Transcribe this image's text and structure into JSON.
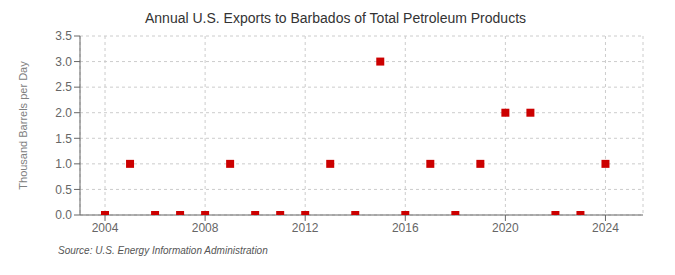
{
  "chart_data": {
    "type": "scatter",
    "title": "Annual U.S. Exports to Barbados of Total Petroleum Products",
    "ylabel": "Thousand Barrels per Day",
    "annotations": [
      "Source: U.S. Energy Information Administration"
    ],
    "x": [
      2004,
      2005,
      2006,
      2007,
      2008,
      2009,
      2010,
      2011,
      2012,
      2013,
      2014,
      2015,
      2016,
      2017,
      2018,
      2019,
      2020,
      2021,
      2022,
      2023,
      2024
    ],
    "values": [
      0.0,
      1.0,
      0.0,
      0.0,
      0.0,
      1.0,
      0.0,
      0.0,
      0.0,
      1.0,
      0.0,
      3.0,
      0.0,
      1.0,
      0.0,
      1.0,
      2.0,
      2.0,
      0.0,
      0.0,
      1.0
    ],
    "color": "#cc0000",
    "marker": "square",
    "xlim": [
      2003.0,
      2025.5
    ],
    "ylim": [
      0.0,
      3.5
    ],
    "xticks": [
      2004,
      2008,
      2012,
      2016,
      2020,
      2024
    ],
    "yticks": [
      {
        "value": 0,
        "label": "0.0"
      },
      0.5,
      {
        "value": 1,
        "label": "1.0"
      },
      1.5,
      {
        "value": 2,
        "label": "2.0"
      },
      2.5,
      {
        "value": 3,
        "label": "3.0"
      },
      3.5
    ],
    "grid": true
  }
}
